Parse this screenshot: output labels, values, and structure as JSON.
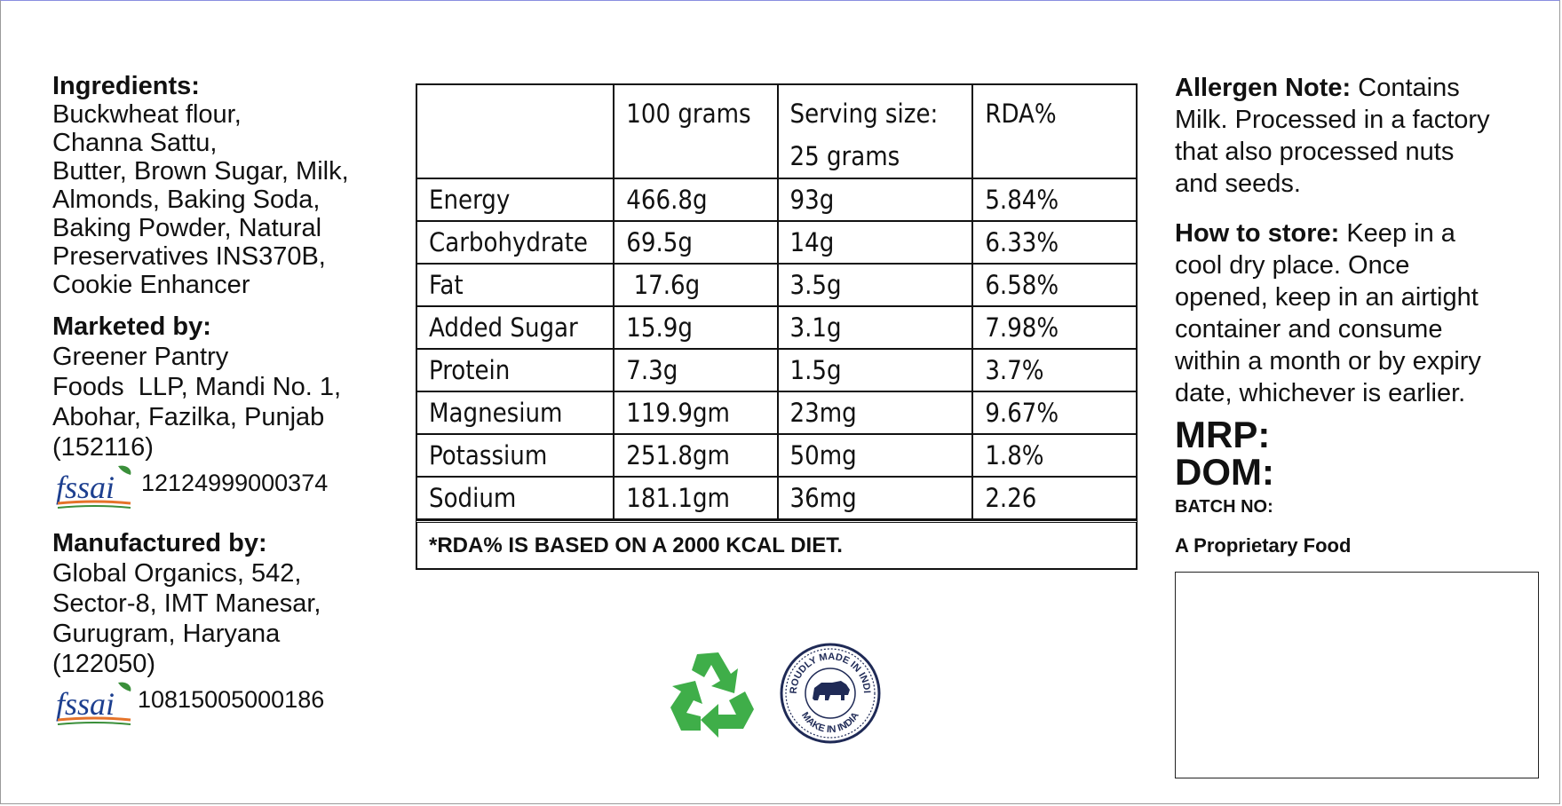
{
  "ingredients": {
    "heading": "Ingredients:",
    "lines": [
      "Buckwheat flour,",
      "Channa Sattu,",
      "Butter, Brown Sugar, Milk,",
      "Almonds, Baking Soda,",
      "Baking Powder, Natural",
      "Preservatives INS370B,",
      "Cookie Enhancer"
    ]
  },
  "marketed_by": {
    "heading": "Marketed by:",
    "lines": [
      "Greener Pantry",
      "Foods  LLP, Mandi No. 1,",
      "Abohar, Fazilka, Punjab",
      "(152116)"
    ],
    "fssai_logo_text": "fssai",
    "fssai_number": "12124999000374"
  },
  "manufactured_by": {
    "heading": "Manufactured by:",
    "lines": [
      "Global Organics, 542,",
      "Sector-8, IMT Manesar,",
      "Gurugram, Haryana",
      "(122050)"
    ],
    "fssai_logo_text": "fssai",
    "fssai_number": "10815005000186"
  },
  "nutrition": {
    "header": [
      "",
      "100 grams",
      "Serving size:",
      "RDA%"
    ],
    "header_line2": [
      "",
      "",
      "25 grams",
      ""
    ],
    "rows": [
      [
        "Energy",
        "466.8g",
        "93g",
        "5.84%"
      ],
      [
        "Carbohydrate",
        "69.5g",
        "14g",
        "6.33%"
      ],
      [
        "Fat",
        " 17.6g",
        "3.5g",
        "6.58%"
      ],
      [
        "Added Sugar",
        "15.9g",
        "3.1g",
        "7.98%"
      ],
      [
        "Protein",
        "7.3g",
        "1.5g",
        "3.7%"
      ],
      [
        "Magnesium",
        "119.9gm",
        "23mg",
        "9.67%"
      ],
      [
        "Potassium",
        "251.8gm",
        "50mg",
        "1.8%"
      ],
      [
        "Sodium",
        "181.1gm",
        "36mg",
        "2.26"
      ]
    ],
    "footnote": "*RDA% IS BASED ON A 2000 KCAL DIET."
  },
  "allergen": {
    "heading": "Allergen Note:",
    "text_first": " Contains",
    "lines": [
      "Milk. Processed in a factory",
      "that also processed nuts",
      "and seeds."
    ]
  },
  "storage": {
    "heading": "How to store:",
    "text_first": " Keep in a",
    "lines": [
      "cool dry place. Once",
      "opened, keep in an airtight",
      "container and consume",
      "within a month or by expiry",
      "date, whichever is earlier."
    ]
  },
  "mrp_label": "MRP:",
  "dom_label": "DOM:",
  "batch_label": "BATCH NO:",
  "proprietary_label": "A Proprietary Food",
  "seal": {
    "top_text": "PROUDLY MADE IN INDIA",
    "bottom_text": "MAKE IN INDIA"
  },
  "colors": {
    "recycle_green": "#3fae49",
    "seal_navy": "#1f2a56",
    "fssai_blue": "#1d3f8f",
    "fssai_orange": "#e5732a",
    "fssai_green": "#3a8f3a"
  },
  "icons": {
    "recycle": "recycle-icon",
    "seal": "made-in-india-seal",
    "fssai": "fssai-logo"
  }
}
